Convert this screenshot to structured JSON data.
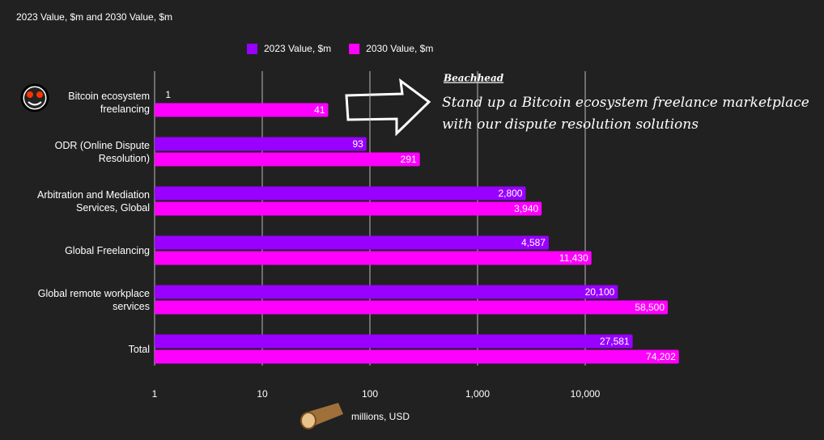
{
  "chart_data": {
    "type": "bar",
    "orientation": "horizontal",
    "title": "2023 Value, $m and 2030 Value, $m",
    "categories": [
      "Bitcoin ecosystem freelancing",
      "ODR (Online Dispute Resolution)",
      "Arbitration and Mediation Services, Global",
      "Global Freelancing",
      "Global remote workplace services",
      "Total"
    ],
    "series": [
      {
        "name": "2023 Value, $m",
        "color": "#9900ff",
        "values": [
          1,
          93,
          2800,
          4587,
          20100,
          27581
        ],
        "value_labels": [
          "1",
          "93",
          "2,800",
          "4,587",
          "20,100",
          "27,581"
        ]
      },
      {
        "name": "2030 Value, $m",
        "color": "#ff00ff",
        "values": [
          41,
          291,
          3940,
          11430,
          58500,
          74202
        ],
        "value_labels": [
          "41",
          "291",
          "3,940",
          "11,430",
          "58,500",
          "74,202"
        ]
      }
    ],
    "xlim": [
      1,
      100000
    ],
    "log_scale": true,
    "xticks": [
      1,
      10,
      100,
      {
        "value": 1000,
        "label": "1,000"
      },
      {
        "value": 10000,
        "label": "10,000"
      }
    ],
    "grid": true,
    "legend": "top",
    "x_label": "millions, USD",
    "annotation": {
      "title": "Beachhead",
      "text": "Stand up a Bitcoin ecosystem freelance marketplace with our dispute resolution solutions"
    }
  }
}
